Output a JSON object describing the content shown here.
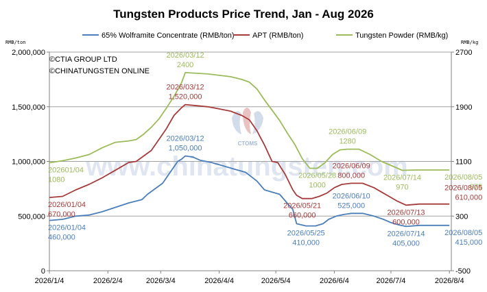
{
  "chart_data": {
    "type": "line",
    "title": "Tungsten Products Price Trend, Jan - Aug 2026",
    "left_axis": {
      "unit_label": "RMB/ton",
      "ylim": [
        0,
        2000000
      ],
      "ticks": [
        "0",
        "500,000",
        "1,000,000",
        "1,500,000",
        "2,000,000"
      ]
    },
    "right_axis": {
      "unit_label": "RMB/kg",
      "ylim": [
        -500,
        2700
      ],
      "ticks": [
        "-500",
        "300",
        "1100",
        "1900",
        "2700"
      ]
    },
    "x_ticks": [
      "2026/1/4",
      "2026/2/4",
      "2026/3/4",
      "2026/4/4",
      "2026/5/4",
      "2026/6/4",
      "2026/7/4",
      "2026/8/4"
    ],
    "x_tick_values": [
      0,
      31,
      59,
      90,
      120,
      151,
      181,
      212
    ],
    "x_range": [
      0,
      213
    ],
    "grid": "horizontal",
    "legend_position": "top",
    "copyright": [
      "©CTIA GROUP LTD",
      "©CHINATUNGSTEN ONLINE"
    ],
    "watermark": {
      "text": "www.chinatungsten.com",
      "logo_text": "CTOMS"
    },
    "series": [
      {
        "name": "65% Wolframite Concentrate (RMB/ton)",
        "axis": "left",
        "color": "#4a7ebb",
        "points": [
          [
            0,
            460000
          ],
          [
            7,
            470000
          ],
          [
            14,
            500000
          ],
          [
            21,
            510000
          ],
          [
            28,
            540000
          ],
          [
            35,
            580000
          ],
          [
            42,
            620000
          ],
          [
            49,
            650000
          ],
          [
            52,
            700000
          ],
          [
            56,
            750000
          ],
          [
            60,
            800000
          ],
          [
            64,
            900000
          ],
          [
            68,
            1000000
          ],
          [
            70,
            1020000
          ],
          [
            72,
            1050000
          ],
          [
            76,
            1040000
          ],
          [
            80,
            1010000
          ],
          [
            86,
            990000
          ],
          [
            92,
            960000
          ],
          [
            98,
            930000
          ],
          [
            104,
            900000
          ],
          [
            110,
            820000
          ],
          [
            114,
            740000
          ],
          [
            118,
            720000
          ],
          [
            122,
            700000
          ],
          [
            126,
            620000
          ],
          [
            129,
            560000
          ],
          [
            131,
            430000
          ],
          [
            136,
            410000
          ],
          [
            141,
            410000
          ],
          [
            145,
            430000
          ],
          [
            148,
            470000
          ],
          [
            152,
            500000
          ],
          [
            156,
            515000
          ],
          [
            160,
            525000
          ],
          [
            166,
            525000
          ],
          [
            172,
            500000
          ],
          [
            177,
            470000
          ],
          [
            181,
            440000
          ],
          [
            185,
            420000
          ],
          [
            189,
            405000
          ],
          [
            196,
            415000
          ],
          [
            203,
            415000
          ],
          [
            210,
            415000
          ],
          [
            212,
            415000
          ]
        ]
      },
      {
        "name": "APT (RMB/ton)",
        "axis": "left",
        "color": "#a63a3a",
        "points": [
          [
            0,
            670000
          ],
          [
            7,
            680000
          ],
          [
            14,
            740000
          ],
          [
            21,
            790000
          ],
          [
            28,
            850000
          ],
          [
            35,
            920000
          ],
          [
            42,
            990000
          ],
          [
            46,
            1000000
          ],
          [
            50,
            1050000
          ],
          [
            54,
            1100000
          ],
          [
            58,
            1200000
          ],
          [
            62,
            1300000
          ],
          [
            66,
            1420000
          ],
          [
            70,
            1490000
          ],
          [
            72,
            1520000
          ],
          [
            78,
            1510000
          ],
          [
            84,
            1500000
          ],
          [
            90,
            1480000
          ],
          [
            96,
            1460000
          ],
          [
            102,
            1420000
          ],
          [
            106,
            1380000
          ],
          [
            110,
            1280000
          ],
          [
            114,
            1150000
          ],
          [
            118,
            1000000
          ],
          [
            121,
            990000
          ],
          [
            125,
            880000
          ],
          [
            129,
            740000
          ],
          [
            131,
            690000
          ],
          [
            134,
            660000
          ],
          [
            139,
            660000
          ],
          [
            143,
            680000
          ],
          [
            147,
            710000
          ],
          [
            151,
            760000
          ],
          [
            155,
            790000
          ],
          [
            160,
            800000
          ],
          [
            166,
            800000
          ],
          [
            172,
            760000
          ],
          [
            176,
            720000
          ],
          [
            180,
            680000
          ],
          [
            184,
            640000
          ],
          [
            189,
            600000
          ],
          [
            196,
            610000
          ],
          [
            203,
            610000
          ],
          [
            210,
            610000
          ],
          [
            212,
            610000
          ]
        ]
      },
      {
        "name": "Tungsten Powder (RMB/kg)",
        "axis": "right",
        "color": "#9bbb59",
        "points": [
          [
            0,
            1080
          ],
          [
            7,
            1110
          ],
          [
            14,
            1150
          ],
          [
            21,
            1200
          ],
          [
            28,
            1300
          ],
          [
            35,
            1380
          ],
          [
            42,
            1400
          ],
          [
            46,
            1420
          ],
          [
            50,
            1500
          ],
          [
            54,
            1600
          ],
          [
            58,
            1720
          ],
          [
            62,
            1880
          ],
          [
            66,
            2050
          ],
          [
            70,
            2250
          ],
          [
            72,
            2400
          ],
          [
            78,
            2390
          ],
          [
            84,
            2380
          ],
          [
            90,
            2360
          ],
          [
            96,
            2340
          ],
          [
            102,
            2300
          ],
          [
            106,
            2260
          ],
          [
            110,
            2160
          ],
          [
            114,
            2000
          ],
          [
            118,
            1850
          ],
          [
            122,
            1700
          ],
          [
            126,
            1520
          ],
          [
            130,
            1350
          ],
          [
            134,
            1140
          ],
          [
            138,
            1000
          ],
          [
            142,
            1000
          ],
          [
            146,
            1080
          ],
          [
            150,
            1200
          ],
          [
            154,
            1270
          ],
          [
            158,
            1280
          ],
          [
            164,
            1280
          ],
          [
            170,
            1200
          ],
          [
            176,
            1100
          ],
          [
            182,
            1030
          ],
          [
            187,
            970
          ],
          [
            194,
            975
          ],
          [
            201,
            975
          ],
          [
            208,
            975
          ],
          [
            212,
            975
          ]
        ]
      }
    ],
    "annotations": [
      {
        "text": "2026/03/12",
        "series": 2,
        "x": 72,
        "y": 2400,
        "pos": "above2"
      },
      {
        "text": "2400",
        "series": 2,
        "x": 72,
        "y": 2400,
        "pos": "above1"
      },
      {
        "text": "2026/03/12",
        "series": 1,
        "x": 72,
        "y": 1520000,
        "pos": "above2"
      },
      {
        "text": "1,520,000",
        "series": 1,
        "x": 72,
        "y": 1520000,
        "pos": "above1"
      },
      {
        "text": "2026/03/12",
        "series": 0,
        "x": 72,
        "y": 1050000,
        "pos": "above2"
      },
      {
        "text": "1,050,000",
        "series": 0,
        "x": 72,
        "y": 1050000,
        "pos": "above1"
      },
      {
        "text": "202601/04",
        "series": 2,
        "x": 0,
        "y": 1080,
        "pos": "below1"
      },
      {
        "text": "1080",
        "series": 2,
        "x": 0,
        "y": 1080,
        "pos": "below2"
      },
      {
        "text": "2026/01/04",
        "series": 1,
        "x": 0,
        "y": 670000,
        "pos": "below1"
      },
      {
        "text": "670,000",
        "series": 1,
        "x": 0,
        "y": 670000,
        "pos": "below2"
      },
      {
        "text": "2026/01/04",
        "series": 0,
        "x": 0,
        "y": 460000,
        "pos": "below1"
      },
      {
        "text": "460,000",
        "series": 0,
        "x": 0,
        "y": 460000,
        "pos": "below2"
      },
      {
        "text": "2026/06/09",
        "series": 2,
        "x": 158,
        "y": 1280,
        "pos": "above2"
      },
      {
        "text": "1280",
        "series": 2,
        "x": 158,
        "y": 1280,
        "pos": "above1"
      },
      {
        "text": "2026/06/09",
        "series": 1,
        "x": 160,
        "y": 800000,
        "pos": "above2"
      },
      {
        "text": "800,000",
        "series": 1,
        "x": 160,
        "y": 800000,
        "pos": "above1"
      },
      {
        "text": "2026/06/10",
        "series": 0,
        "x": 160,
        "y": 525000,
        "pos": "above2"
      },
      {
        "text": "525,000",
        "series": 0,
        "x": 160,
        "y": 525000,
        "pos": "above1"
      },
      {
        "text": "2026/05/28",
        "series": 2,
        "x": 142,
        "y": 1000,
        "pos": "below1"
      },
      {
        "text": "1000",
        "series": 2,
        "x": 142,
        "y": 1000,
        "pos": "below2"
      },
      {
        "text": "2026/05/21",
        "series": 1,
        "x": 134,
        "y": 660000,
        "pos": "below1"
      },
      {
        "text": "660,000",
        "series": 1,
        "x": 134,
        "y": 660000,
        "pos": "below2"
      },
      {
        "text": "2026/05/25",
        "series": 0,
        "x": 136,
        "y": 410000,
        "pos": "below1"
      },
      {
        "text": "410,000",
        "series": 0,
        "x": 136,
        "y": 410000,
        "pos": "below2"
      },
      {
        "text": "2026/07/14",
        "series": 2,
        "x": 187,
        "y": 970,
        "pos": "below1"
      },
      {
        "text": "970",
        "series": 2,
        "x": 187,
        "y": 970,
        "pos": "below2"
      },
      {
        "text": "2026/07/13",
        "series": 1,
        "x": 189,
        "y": 600000,
        "pos": "below1"
      },
      {
        "text": "600,000",
        "series": 1,
        "x": 189,
        "y": 600000,
        "pos": "below2"
      },
      {
        "text": "2026/07/14",
        "series": 0,
        "x": 189,
        "y": 405000,
        "pos": "below1"
      },
      {
        "text": "405,000",
        "series": 0,
        "x": 189,
        "y": 405000,
        "pos": "below2"
      },
      {
        "text": "2026/08/05",
        "series": 2,
        "x": 212,
        "y": 975,
        "pos": "endbelow1"
      },
      {
        "text": "975",
        "series": 2,
        "x": 212,
        "y": 975,
        "pos": "endbelow2"
      },
      {
        "text": "2026/08/05",
        "series": 1,
        "x": 212,
        "y": 610000,
        "pos": "endabove2"
      },
      {
        "text": "610,000",
        "series": 1,
        "x": 212,
        "y": 610000,
        "pos": "endabove1"
      },
      {
        "text": "2026/08/05",
        "series": 0,
        "x": 212,
        "y": 415000,
        "pos": "endbelow1"
      },
      {
        "text": "415,000",
        "series": 0,
        "x": 212,
        "y": 415000,
        "pos": "endbelow2"
      }
    ]
  }
}
